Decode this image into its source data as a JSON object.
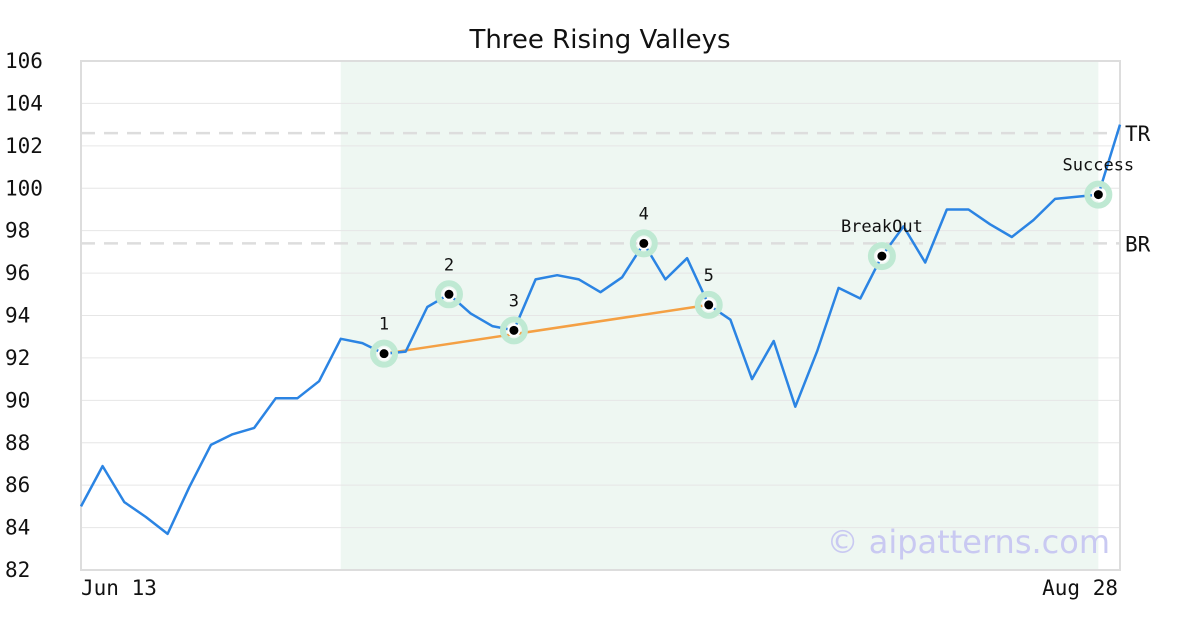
{
  "chart_data": {
    "type": "line",
    "title": "Three Rising Valleys",
    "ylim": [
      82,
      106
    ],
    "y_ticks": [
      82,
      84,
      86,
      88,
      90,
      92,
      94,
      96,
      98,
      100,
      102,
      104,
      106
    ],
    "x_tick_labels": [
      "Jun 13",
      "Aug 28"
    ],
    "grid": true,
    "series": [
      {
        "color": "#2b84e3",
        "values": [
          85.0,
          86.9,
          85.2,
          84.5,
          83.7,
          85.9,
          87.9,
          88.4,
          88.7,
          90.1,
          90.1,
          90.9,
          92.9,
          92.7,
          92.2,
          92.3,
          94.4,
          95.0,
          94.1,
          93.5,
          93.3,
          95.7,
          95.9,
          95.7,
          95.1,
          95.8,
          97.4,
          95.7,
          96.7,
          94.5,
          93.8,
          91.0,
          92.8,
          89.7,
          92.3,
          95.3,
          94.8,
          96.8,
          98.2,
          96.5,
          99.0,
          99.0,
          98.3,
          97.7,
          98.5,
          99.5,
          99.6,
          99.7,
          103.0
        ]
      }
    ],
    "highlight_region": {
      "from_index": 12,
      "to_index": 47,
      "color": "#eef7f2"
    },
    "reference_lines": [
      {
        "label": "TR",
        "value": 102.6
      },
      {
        "label": "BR",
        "value": 97.4
      }
    ],
    "trend_line": {
      "from_index": 14,
      "to_index": 29,
      "color": "#f4a044"
    },
    "marked_points": [
      {
        "label": "1",
        "index": 14
      },
      {
        "label": "2",
        "index": 17
      },
      {
        "label": "3",
        "index": 20
      },
      {
        "label": "4",
        "index": 26
      },
      {
        "label": "5",
        "index": 29
      },
      {
        "label": "BreakOut",
        "index": 37
      },
      {
        "label": "Success",
        "index": 47
      }
    ],
    "watermark": "© aipatterns.com"
  }
}
